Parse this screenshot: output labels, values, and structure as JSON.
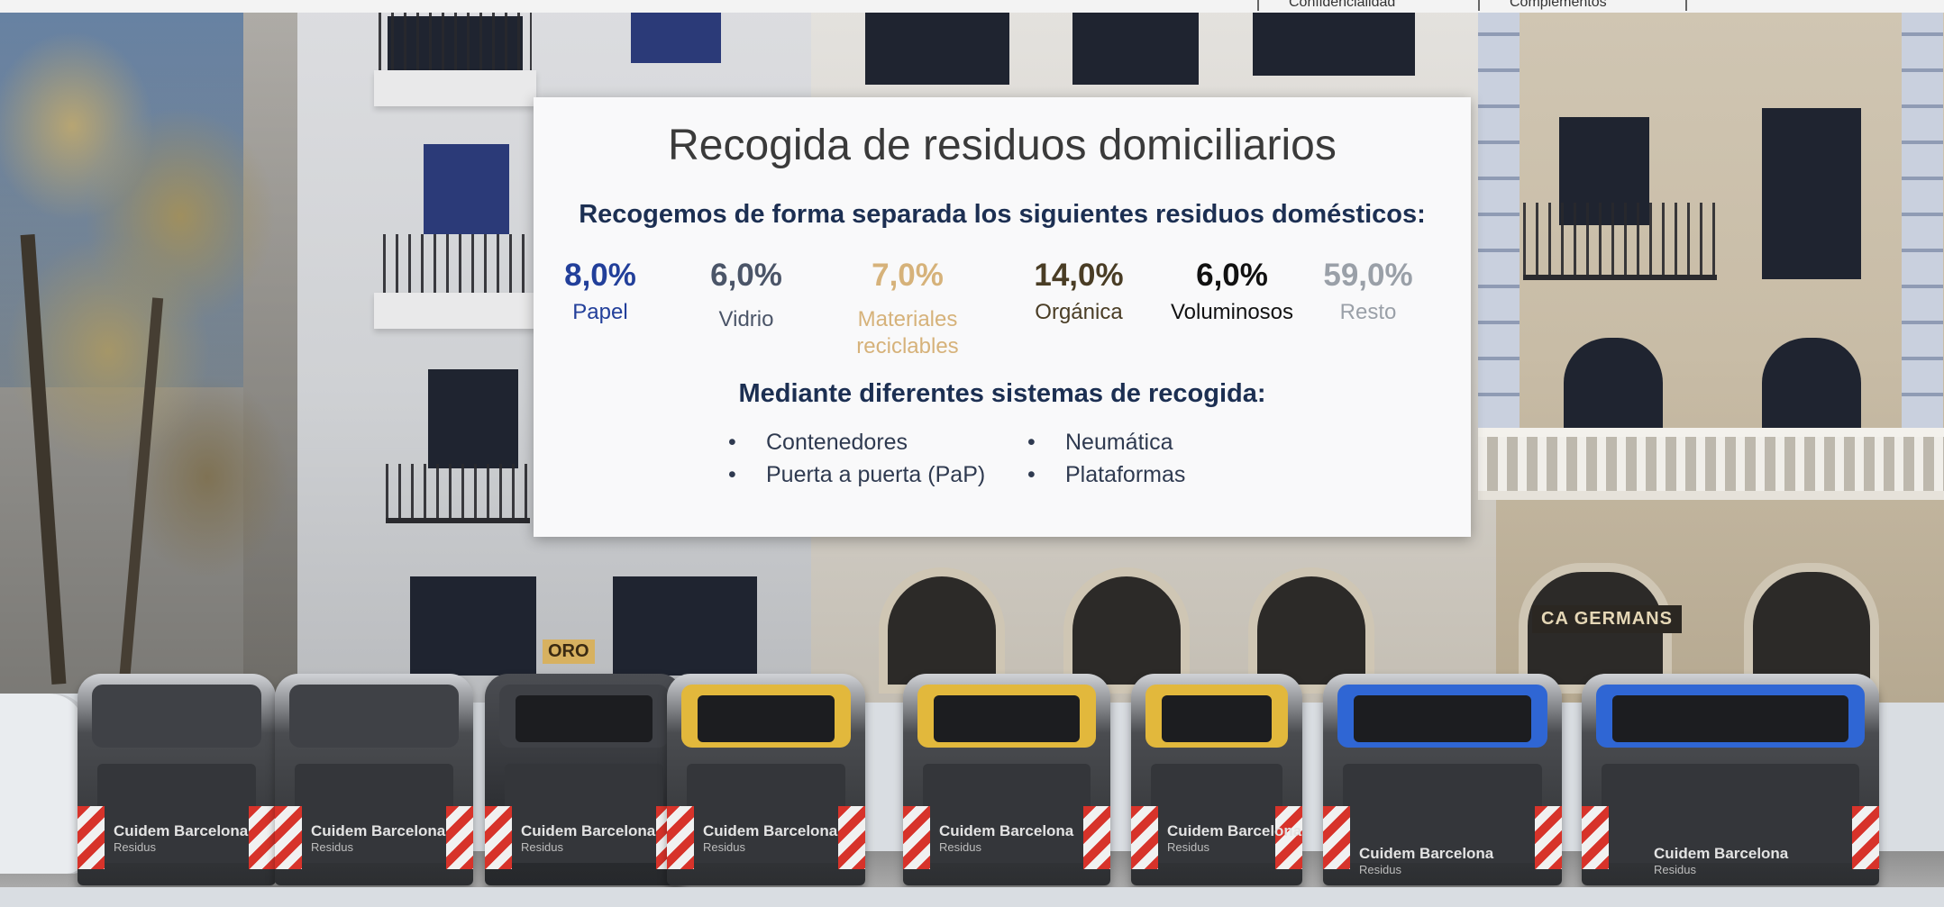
{
  "nav": {
    "items": [
      "Confidencialidad",
      "Complementos"
    ]
  },
  "card": {
    "title": "Recogida de residuos domiciliarios",
    "subtitle": "Recogemos de forma separada los siguientes residuos domésticos:",
    "stats": [
      {
        "value": "8,0%",
        "label": "Papel",
        "color": "#223f9a"
      },
      {
        "value": "6,0%",
        "label": "Vidrio",
        "color": "#4b5568"
      },
      {
        "value": "7,0%",
        "label": "Materiales reciclables",
        "color": "#d6b27a"
      },
      {
        "value": "14,0%",
        "label": "Orgánica",
        "color": "#4a3d25"
      },
      {
        "value": "6,0%",
        "label": "Voluminosos",
        "color": "#111111"
      },
      {
        "value": "59,0%",
        "label": "Resto",
        "color": "#9aa0a8"
      }
    ],
    "subtitle2": "Mediante diferentes sistemas de recogida:",
    "systems_left": [
      "Contenedores",
      "Puerta a puerta (PaP)"
    ],
    "systems_right": [
      "Neumática",
      "Plataformas"
    ],
    "bullet": "•"
  },
  "photo": {
    "shop_sign": "CA GERMANS",
    "oro_sign": "ORO",
    "bin_brand": "Cuidem Barcelona",
    "bin_sub": "Residus"
  }
}
